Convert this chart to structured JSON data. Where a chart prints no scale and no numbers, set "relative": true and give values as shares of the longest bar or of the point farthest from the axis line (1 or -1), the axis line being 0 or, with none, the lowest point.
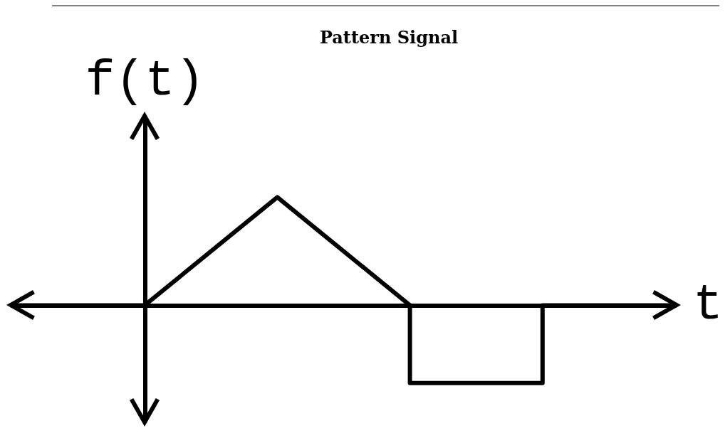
{
  "chart_data": {
    "type": "line",
    "title": "Pattern Signal",
    "xlabel": "t",
    "ylabel": "f(t)",
    "relative": true,
    "line_style": "solid",
    "categories": [
      null,
      null,
      null,
      null,
      null,
      null
    ],
    "series": [
      {
        "color": "#000000",
        "values": [
          0,
          0,
          1,
          0,
          null,
          null
        ]
      },
      {
        "type": "step",
        "color": "#000000",
        "values": [
          null,
          null,
          null,
          0,
          -0.72,
          0
        ]
      }
    ]
  }
}
